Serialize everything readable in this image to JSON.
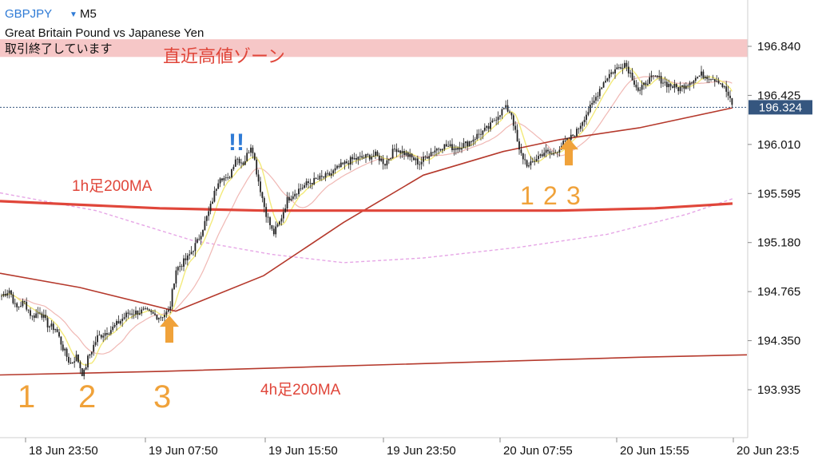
{
  "header": {
    "symbol": "GBPJPY",
    "symbol_caret": "▼",
    "timeframe": "M5",
    "description": "Great Britain Pound vs Japanese Yen",
    "status": "取引終了しています"
  },
  "annotations": {
    "zone_label": "直近高値ゾーン",
    "ma_1h_label": "1h足200MA",
    "ma_4h_label": "4h足200MA",
    "exclaim": "!!",
    "count_left": [
      "1",
      "2",
      "3"
    ],
    "count_right": [
      "1",
      "2",
      "3"
    ]
  },
  "colors": {
    "background": "#ffffff",
    "candle": "#222222",
    "ma_fast": "#f3ea7a",
    "ma_mid": "#f0b8b4",
    "ma_5m_200": "#b5392c",
    "ma_1h_200": "#e0463a",
    "ma_4h_200": "#b5392c",
    "ma_dashed": "#e6a6e6",
    "zone_fill": "#f6c7c7",
    "zone_text": "#e0463a",
    "ma_label_text": "#e0463a",
    "count_text": "#f0a23a",
    "arrow": "#f0a23a",
    "exclaim_text": "#2f7bd6",
    "symbol_text": "#2f7bd6",
    "price_tag_bg": "#35567f",
    "price_tag_text": "#ffffff",
    "axis_text": "#111111"
  },
  "chart_data": {
    "type": "candlestick",
    "symbol": "GBPJPY",
    "timeframe": "M5",
    "ylim": [
      193.75,
      197.05
    ],
    "y_ticks": [
      196.84,
      196.425,
      196.01,
      195.595,
      195.18,
      194.765,
      194.35,
      193.935
    ],
    "y_tick_labels": [
      "196.840",
      "196.425",
      "196.010",
      "195.595",
      "195.180",
      "194.765",
      "194.350",
      "193.935"
    ],
    "x_ticks": [
      "18 Jun 23:50",
      "19 Jun 07:50",
      "19 Jun 15:50",
      "19 Jun 23:50",
      "20 Jun 07:55",
      "20 Jun 15:55",
      "20 Jun 23:5"
    ],
    "last_price": 196.324,
    "last_price_label": "196.324",
    "zone": {
      "from": 196.75,
      "to": 196.9
    },
    "close_path": [
      [
        0,
        194.72
      ],
      [
        12,
        194.78
      ],
      [
        20,
        194.62
      ],
      [
        30,
        194.68
      ],
      [
        40,
        194.55
      ],
      [
        50,
        194.6
      ],
      [
        60,
        194.48
      ],
      [
        70,
        194.45
      ],
      [
        78,
        194.3
      ],
      [
        88,
        194.15
      ],
      [
        96,
        194.22
      ],
      [
        104,
        194.05
      ],
      [
        110,
        194.2
      ],
      [
        122,
        194.38
      ],
      [
        140,
        194.45
      ],
      [
        160,
        194.58
      ],
      [
        180,
        194.6
      ],
      [
        200,
        194.55
      ],
      [
        212,
        194.6
      ],
      [
        220,
        194.95
      ],
      [
        235,
        195.05
      ],
      [
        248,
        195.2
      ],
      [
        262,
        195.45
      ],
      [
        275,
        195.75
      ],
      [
        285,
        195.7
      ],
      [
        295,
        195.9
      ],
      [
        305,
        195.85
      ],
      [
        315,
        196.02
      ],
      [
        322,
        195.75
      ],
      [
        332,
        195.45
      ],
      [
        342,
        195.25
      ],
      [
        350,
        195.35
      ],
      [
        360,
        195.55
      ],
      [
        372,
        195.62
      ],
      [
        385,
        195.68
      ],
      [
        400,
        195.72
      ],
      [
        412,
        195.75
      ],
      [
        425,
        195.82
      ],
      [
        440,
        195.88
      ],
      [
        455,
        195.9
      ],
      [
        470,
        195.92
      ],
      [
        482,
        195.85
      ],
      [
        495,
        195.98
      ],
      [
        510,
        195.92
      ],
      [
        525,
        195.85
      ],
      [
        540,
        195.95
      ],
      [
        555,
        196.0
      ],
      [
        570,
        195.98
      ],
      [
        585,
        196.02
      ],
      [
        600,
        196.1
      ],
      [
        612,
        196.15
      ],
      [
        622,
        196.25
      ],
      [
        632,
        196.32
      ],
      [
        640,
        196.28
      ],
      [
        650,
        195.95
      ],
      [
        662,
        195.82
      ],
      [
        672,
        195.9
      ],
      [
        682,
        195.95
      ],
      [
        692,
        195.92
      ],
      [
        702,
        196.0
      ],
      [
        712,
        196.05
      ],
      [
        722,
        196.12
      ],
      [
        732,
        196.25
      ],
      [
        742,
        196.35
      ],
      [
        752,
        196.5
      ],
      [
        762,
        196.6
      ],
      [
        772,
        196.65
      ],
      [
        782,
        196.7
      ],
      [
        790,
        196.6
      ],
      [
        800,
        196.45
      ],
      [
        810,
        196.55
      ],
      [
        822,
        196.58
      ],
      [
        835,
        196.52
      ],
      [
        850,
        196.48
      ],
      [
        865,
        196.55
      ],
      [
        878,
        196.6
      ],
      [
        890,
        196.58
      ],
      [
        900,
        196.55
      ],
      [
        910,
        196.45
      ],
      [
        917,
        196.324
      ]
    ],
    "ma_5m_200": [
      [
        0,
        194.92
      ],
      [
        100,
        194.8
      ],
      [
        220,
        194.6
      ],
      [
        330,
        194.9
      ],
      [
        430,
        195.35
      ],
      [
        530,
        195.75
      ],
      [
        630,
        195.95
      ],
      [
        700,
        196.05
      ],
      [
        800,
        196.15
      ],
      [
        917,
        196.32
      ]
    ],
    "ma_1h_200": [
      [
        0,
        195.53
      ],
      [
        200,
        195.47
      ],
      [
        330,
        195.45
      ],
      [
        500,
        195.45
      ],
      [
        700,
        195.45
      ],
      [
        820,
        195.47
      ],
      [
        917,
        195.51
      ]
    ],
    "ma_4h_200": [
      [
        0,
        194.06
      ],
      [
        200,
        194.09
      ],
      [
        400,
        194.13
      ],
      [
        600,
        194.17
      ],
      [
        800,
        194.21
      ],
      [
        935,
        194.23
      ]
    ],
    "ma_dashed": [
      [
        0,
        195.6
      ],
      [
        120,
        195.45
      ],
      [
        240,
        195.2
      ],
      [
        340,
        195.08
      ],
      [
        430,
        195.01
      ],
      [
        530,
        195.05
      ],
      [
        650,
        195.14
      ],
      [
        760,
        195.25
      ],
      [
        860,
        195.42
      ],
      [
        917,
        195.55
      ]
    ],
    "arrows_up": [
      [
        212,
        194.4
      ],
      [
        712,
        195.9
      ]
    ]
  }
}
